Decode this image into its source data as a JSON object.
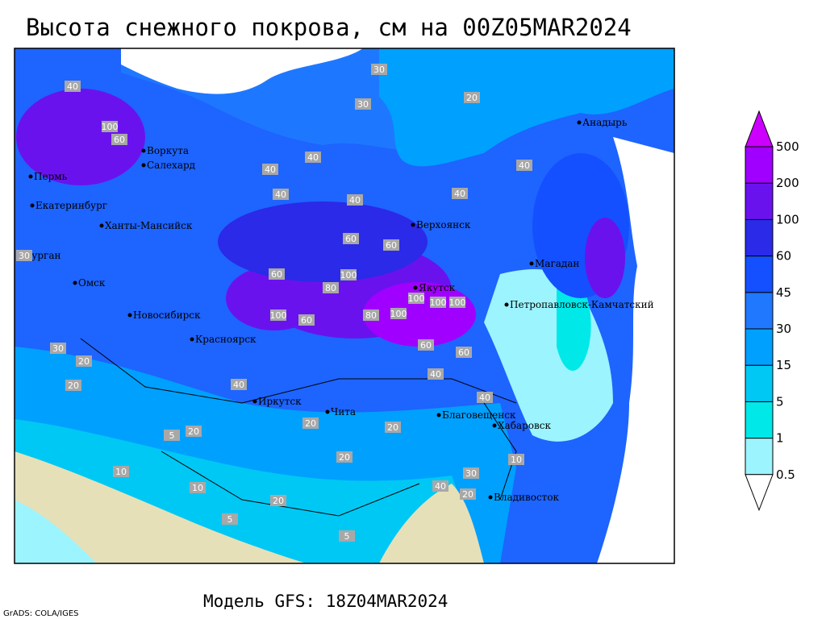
{
  "title": "Высота снежного покрова, см на 00Z05MAR2024",
  "cities": [
    "Анадырь",
    "Воркута",
    "Салехард",
    "Пермь",
    "Екатеринбург",
    "Ханты-Мансийск",
    "Курган",
    "Омск",
    "Новосибирск",
    "Красноярск",
    "Иркутск",
    "Чита",
    "Благовещенск",
    "Хабаровск",
    "Владивосток",
    "Верхоянск",
    "Якутск",
    "Магадан",
    "Петропавловск-Камчатский"
  ],
  "contour_labels": [
    40,
    30,
    20,
    30,
    40,
    100,
    60,
    40,
    40,
    40,
    40,
    40,
    60,
    60,
    100,
    80,
    100,
    60,
    100,
    100,
    100,
    60,
    100,
    80,
    60,
    60,
    40,
    40,
    30,
    20,
    20,
    20,
    10,
    5,
    20,
    20,
    20,
    10,
    5,
    40,
    30,
    20,
    30,
    40,
    20,
    10,
    5
  ],
  "legend": {
    "levels": [
      0.5,
      1,
      5,
      15,
      30,
      45,
      60,
      100,
      200,
      500
    ],
    "colors": [
      "#ffffff",
      "#9cf4ff",
      "#00e8e8",
      "#00c8f4",
      "#00a0ff",
      "#2078ff",
      "#1450ff",
      "#2a2ae8",
      "#6a12ee",
      "#a000ff",
      "#cc00ff"
    ]
  },
  "model": "Модель GFS: 18Z04MAR2024",
  "credit": "GrADS: COLA/IGES"
}
